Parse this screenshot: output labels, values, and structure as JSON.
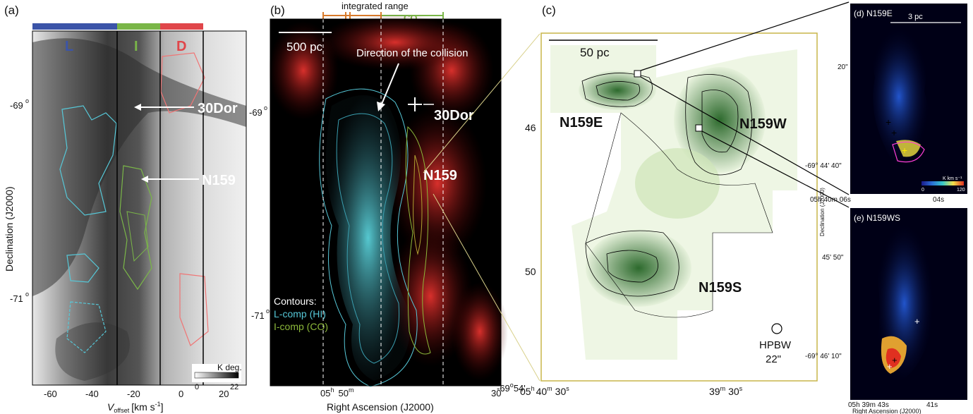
{
  "panels": {
    "a": {
      "tag": "(a)",
      "groups": [
        "L",
        "I",
        "D"
      ],
      "group_colors": {
        "L": "#3b54a8",
        "I": "#7ab648",
        "D": "#e0464a"
      },
      "labels": [
        "30Dor",
        "N159"
      ],
      "ylabel": "Declination (J2000)",
      "xlabel_main": "V",
      "xlabel_sub": "offset",
      "xlabel_units": "[km s",
      "xlabel_exp": "-1",
      "xlabel_close": "]",
      "xticks": [
        "-60",
        "-40",
        "-20",
        "0",
        "20"
      ],
      "yticks": [
        "-69",
        "-71"
      ],
      "ytick_sup": "o",
      "colorbar": {
        "label": "K deg.",
        "min": "0",
        "max": "22"
      }
    },
    "b": {
      "tag": "(b)",
      "integrated_range": "integrated range",
      "co": "CO",
      "scalebar": "500 pc",
      "arrow_label": "Direction of the collision",
      "labels": [
        "30Dor",
        "N159"
      ],
      "xlabel": "Right Ascension (J2000)",
      "xtick_h": "05",
      "xtick_h_sup": "h",
      "xtick_m": "50",
      "xtick_m_sup": "m",
      "xtick_30": "30",
      "yticks": [
        "-69",
        "-71"
      ],
      "ytick_sup": "o",
      "legend_title": "Contours:",
      "legend_l": "L-comp (HI)",
      "legend_i": "I-comp (CO)",
      "legend_colors": {
        "l": "#56c8d8",
        "i": "#8cb83a"
      },
      "corner_tick": "-69",
      "corner_tick_sup": "o",
      "corner_tick_rest": "54'"
    },
    "c": {
      "tag": "(c)",
      "scalebar": "50 pc",
      "regions": [
        "N159E",
        "N159W",
        "N159S"
      ],
      "yticks": [
        "46",
        "50"
      ],
      "xtick1_h": "05",
      "xtick1_h_sup": "h",
      "xtick1_m": "40",
      "xtick1_m_sup": "m",
      "xtick1_s": "30",
      "xtick1_s_sup": "s",
      "xtick2_m": "39",
      "xtick2_m_sup": "m",
      "xtick2_s": "30",
      "xtick2_s_sup": "s",
      "beam": "HPBW",
      "beam_size": "22\""
    },
    "d": {
      "tag": "(d) N159E",
      "scalebar": "3 pc",
      "yticks": [
        "20\"",
        "-69° 44' 40\""
      ],
      "ylabel": "Declination (J2000)",
      "xtick_left": "05h 40m 06s",
      "xtick_right": "04s",
      "colorbar": {
        "label": "K km s⁻¹",
        "min": "0",
        "max": "120"
      }
    },
    "e": {
      "tag": "(e) N159WS",
      "yticks": [
        "45' 50\"",
        "-69° 46' 10\""
      ],
      "xtick_left": "05h 39m 43s",
      "xtick_right": "41s",
      "xlabel": "Right Ascension (J2000)"
    }
  }
}
